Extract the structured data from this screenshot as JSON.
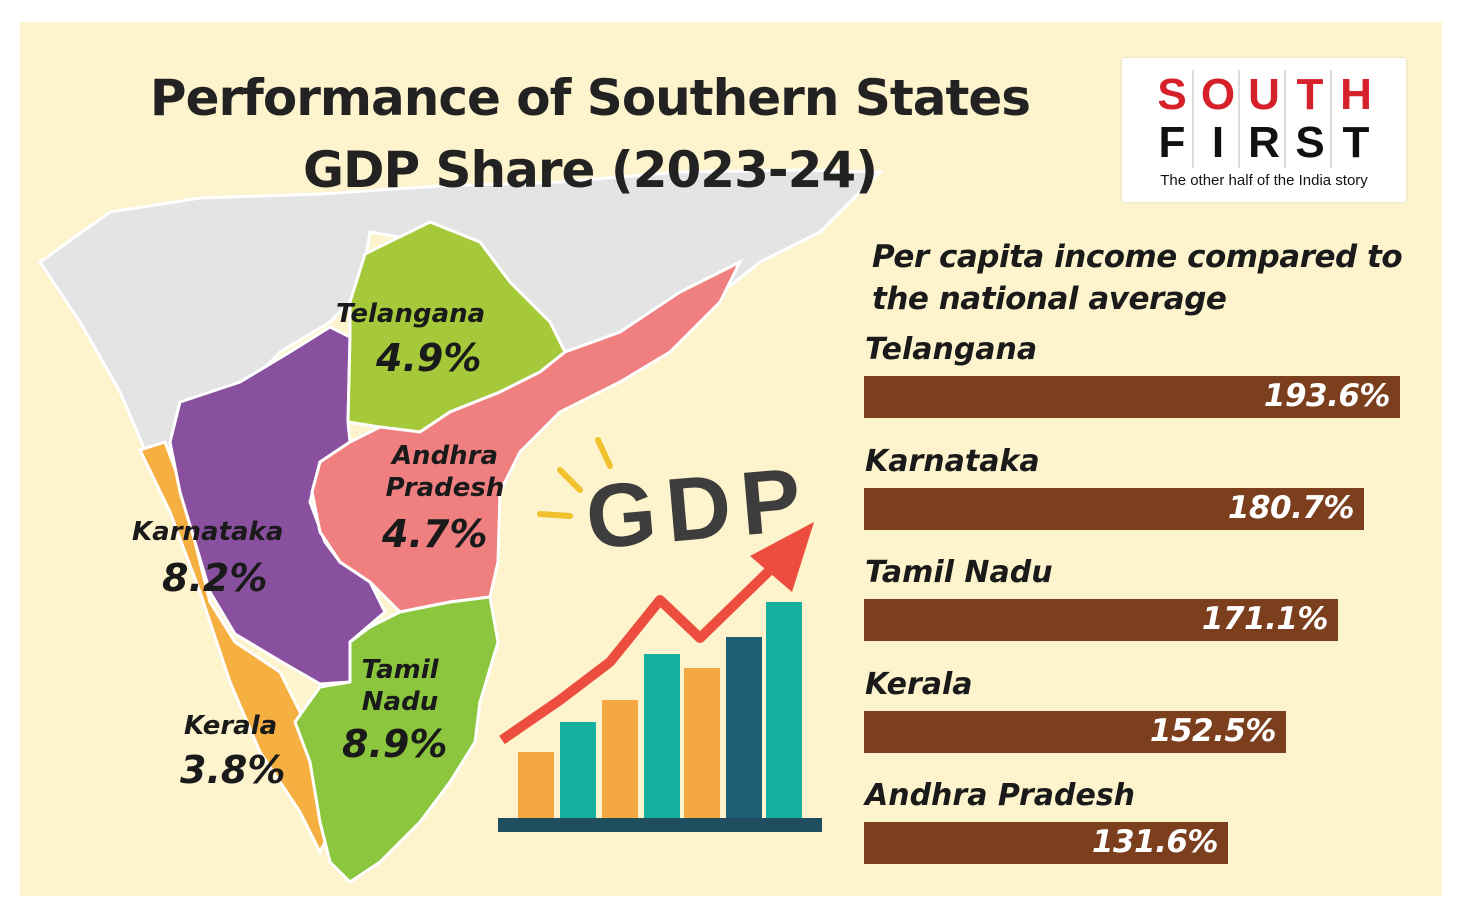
{
  "title_line1": "Performance of Southern States",
  "title_line2": "GDP Share (2023-24)",
  "logo": {
    "line1": [
      "S",
      "O",
      "U",
      "T",
      "H"
    ],
    "line2": [
      "F",
      "I",
      "R",
      "S",
      "T"
    ],
    "tagline": "The other half of the India story"
  },
  "gdp_word": "GDP",
  "colors": {
    "background": "#fdf3cc",
    "bar": "#7b3f1e",
    "telangana": "#a5c93a",
    "andhra_pradesh": "#f08080",
    "karnataka": "#8a50a0",
    "tamil_nadu": "#8cc63f",
    "kerala": "#f5b041",
    "rest_of_india": "#e4e4e4"
  },
  "map_states": [
    {
      "key": "telangana",
      "label": "Telangana",
      "value": "4.9%"
    },
    {
      "key": "andhra_pradesh",
      "label": "Andhra Pradesh",
      "value": "4.7%"
    },
    {
      "key": "karnataka",
      "label": "Karnataka",
      "value": "8.2%"
    },
    {
      "key": "tamil_nadu",
      "label": "Tamil Nadu",
      "value": "8.9%"
    },
    {
      "key": "kerala",
      "label": "Kerala",
      "value": "3.8%"
    }
  ],
  "chart_data": [
    {
      "type": "bar",
      "orientation": "horizontal",
      "title": "Per capita income compared to the national average",
      "categories": [
        "Telangana",
        "Karnataka",
        "Tamil Nadu",
        "Kerala",
        "Andhra Pradesh"
      ],
      "values": [
        193.6,
        180.7,
        171.1,
        152.5,
        131.6
      ],
      "value_labels": [
        "193.6%",
        "180.7%",
        "171.1%",
        "152.5%",
        "131.6%"
      ],
      "unit": "%"
    },
    {
      "type": "map",
      "title": "GDP Share (2023-24)",
      "categories": [
        "Telangana",
        "Andhra Pradesh",
        "Karnataka",
        "Tamil Nadu",
        "Kerala"
      ],
      "values": [
        4.9,
        4.7,
        8.2,
        8.9,
        3.8
      ],
      "unit": "%"
    }
  ]
}
